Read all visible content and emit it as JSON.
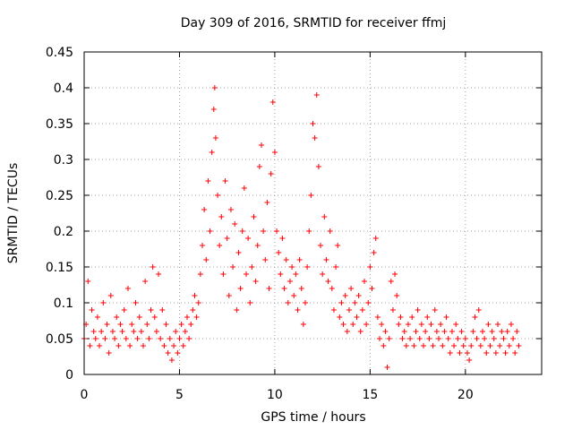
{
  "chart_data": {
    "type": "scatter",
    "title": "Day 309 of 2016, SRMTID for receiver ffmj",
    "xlabel": "GPS time / hours",
    "ylabel": "SRMTID / TECUs",
    "xlim": [
      0,
      24
    ],
    "ylim": [
      0,
      0.45
    ],
    "grid": true,
    "marker": "+",
    "marker_color": "#ff0000",
    "x_ticks": [
      0,
      5,
      10,
      15,
      20
    ],
    "x_tick_labels": [
      "0",
      "5",
      "10",
      "15",
      "20"
    ],
    "y_ticks": [
      0,
      0.05,
      0.1,
      0.15,
      0.2,
      0.25,
      0.3,
      0.35,
      0.4,
      0.45
    ],
    "y_tick_labels": [
      "0",
      "0.05",
      "0.1",
      "0.15",
      "0.2",
      "0.25",
      "0.3",
      "0.35",
      "0.4",
      "0.45"
    ],
    "series": [
      {
        "name": "SRMTID",
        "points": [
          [
            0.0,
            0.05
          ],
          [
            0.1,
            0.07
          ],
          [
            0.2,
            0.13
          ],
          [
            0.3,
            0.04
          ],
          [
            0.4,
            0.09
          ],
          [
            0.5,
            0.06
          ],
          [
            0.6,
            0.05
          ],
          [
            0.7,
            0.08
          ],
          [
            0.8,
            0.04
          ],
          [
            0.9,
            0.06
          ],
          [
            1.0,
            0.1
          ],
          [
            1.1,
            0.05
          ],
          [
            1.2,
            0.07
          ],
          [
            1.3,
            0.03
          ],
          [
            1.4,
            0.11
          ],
          [
            1.5,
            0.06
          ],
          [
            1.6,
            0.05
          ],
          [
            1.7,
            0.08
          ],
          [
            1.8,
            0.04
          ],
          [
            1.9,
            0.07
          ],
          [
            2.0,
            0.06
          ],
          [
            2.1,
            0.09
          ],
          [
            2.2,
            0.05
          ],
          [
            2.3,
            0.12
          ],
          [
            2.4,
            0.04
          ],
          [
            2.5,
            0.07
          ],
          [
            2.6,
            0.06
          ],
          [
            2.7,
            0.1
          ],
          [
            2.8,
            0.05
          ],
          [
            2.9,
            0.08
          ],
          [
            3.0,
            0.06
          ],
          [
            3.1,
            0.04
          ],
          [
            3.2,
            0.13
          ],
          [
            3.3,
            0.07
          ],
          [
            3.4,
            0.05
          ],
          [
            3.5,
            0.09
          ],
          [
            3.6,
            0.15
          ],
          [
            3.7,
            0.08
          ],
          [
            3.8,
            0.06
          ],
          [
            3.9,
            0.14
          ],
          [
            4.0,
            0.05
          ],
          [
            4.1,
            0.09
          ],
          [
            4.2,
            0.04
          ],
          [
            4.3,
            0.07
          ],
          [
            4.4,
            0.03
          ],
          [
            4.5,
            0.05
          ],
          [
            4.6,
            0.02
          ],
          [
            4.7,
            0.04
          ],
          [
            4.8,
            0.06
          ],
          [
            4.9,
            0.03
          ],
          [
            5.0,
            0.05
          ],
          [
            5.1,
            0.07
          ],
          [
            5.2,
            0.04
          ],
          [
            5.3,
            0.06
          ],
          [
            5.4,
            0.08
          ],
          [
            5.5,
            0.05
          ],
          [
            5.6,
            0.07
          ],
          [
            5.7,
            0.09
          ],
          [
            5.8,
            0.11
          ],
          [
            5.9,
            0.08
          ],
          [
            6.0,
            0.1
          ],
          [
            6.1,
            0.14
          ],
          [
            6.2,
            0.18
          ],
          [
            6.3,
            0.23
          ],
          [
            6.4,
            0.16
          ],
          [
            6.5,
            0.27
          ],
          [
            6.6,
            0.2
          ],
          [
            6.7,
            0.31
          ],
          [
            6.8,
            0.37
          ],
          [
            6.85,
            0.4
          ],
          [
            6.9,
            0.33
          ],
          [
            7.0,
            0.25
          ],
          [
            7.1,
            0.18
          ],
          [
            7.2,
            0.22
          ],
          [
            7.3,
            0.14
          ],
          [
            7.4,
            0.27
          ],
          [
            7.5,
            0.19
          ],
          [
            7.6,
            0.11
          ],
          [
            7.7,
            0.23
          ],
          [
            7.8,
            0.15
          ],
          [
            7.9,
            0.21
          ],
          [
            8.0,
            0.09
          ],
          [
            8.1,
            0.17
          ],
          [
            8.2,
            0.12
          ],
          [
            8.3,
            0.2
          ],
          [
            8.4,
            0.26
          ],
          [
            8.5,
            0.14
          ],
          [
            8.6,
            0.19
          ],
          [
            8.7,
            0.1
          ],
          [
            8.8,
            0.15
          ],
          [
            8.9,
            0.22
          ],
          [
            9.0,
            0.13
          ],
          [
            9.1,
            0.18
          ],
          [
            9.2,
            0.29
          ],
          [
            9.3,
            0.32
          ],
          [
            9.4,
            0.2
          ],
          [
            9.5,
            0.16
          ],
          [
            9.6,
            0.24
          ],
          [
            9.7,
            0.12
          ],
          [
            9.8,
            0.28
          ],
          [
            9.9,
            0.38
          ],
          [
            10.0,
            0.31
          ],
          [
            10.1,
            0.2
          ],
          [
            10.2,
            0.17
          ],
          [
            10.3,
            0.14
          ],
          [
            10.4,
            0.19
          ],
          [
            10.5,
            0.12
          ],
          [
            10.6,
            0.16
          ],
          [
            10.7,
            0.1
          ],
          [
            10.8,
            0.13
          ],
          [
            10.9,
            0.15
          ],
          [
            11.0,
            0.11
          ],
          [
            11.1,
            0.14
          ],
          [
            11.2,
            0.09
          ],
          [
            11.3,
            0.16
          ],
          [
            11.4,
            0.12
          ],
          [
            11.5,
            0.07
          ],
          [
            11.6,
            0.1
          ],
          [
            11.7,
            0.15
          ],
          [
            11.8,
            0.2
          ],
          [
            11.9,
            0.25
          ],
          [
            12.0,
            0.35
          ],
          [
            12.1,
            0.33
          ],
          [
            12.2,
            0.39
          ],
          [
            12.3,
            0.29
          ],
          [
            12.4,
            0.18
          ],
          [
            12.5,
            0.14
          ],
          [
            12.6,
            0.22
          ],
          [
            12.7,
            0.16
          ],
          [
            12.8,
            0.13
          ],
          [
            12.9,
            0.2
          ],
          [
            13.0,
            0.12
          ],
          [
            13.1,
            0.09
          ],
          [
            13.2,
            0.15
          ],
          [
            13.3,
            0.18
          ],
          [
            13.4,
            0.08
          ],
          [
            13.5,
            0.1
          ],
          [
            13.6,
            0.07
          ],
          [
            13.7,
            0.11
          ],
          [
            13.8,
            0.06
          ],
          [
            13.9,
            0.09
          ],
          [
            14.0,
            0.12
          ],
          [
            14.1,
            0.07
          ],
          [
            14.2,
            0.1
          ],
          [
            14.3,
            0.08
          ],
          [
            14.4,
            0.11
          ],
          [
            14.5,
            0.06
          ],
          [
            14.6,
            0.09
          ],
          [
            14.7,
            0.13
          ],
          [
            14.8,
            0.07
          ],
          [
            14.9,
            0.1
          ],
          [
            15.0,
            0.15
          ],
          [
            15.1,
            0.12
          ],
          [
            15.2,
            0.17
          ],
          [
            15.3,
            0.19
          ],
          [
            15.4,
            0.08
          ],
          [
            15.5,
            0.05
          ],
          [
            15.6,
            0.07
          ],
          [
            15.7,
            0.04
          ],
          [
            15.8,
            0.06
          ],
          [
            15.9,
            0.01
          ],
          [
            16.0,
            0.05
          ],
          [
            16.1,
            0.13
          ],
          [
            16.2,
            0.09
          ],
          [
            16.3,
            0.14
          ],
          [
            16.4,
            0.11
          ],
          [
            16.5,
            0.07
          ],
          [
            16.6,
            0.08
          ],
          [
            16.7,
            0.05
          ],
          [
            16.8,
            0.06
          ],
          [
            16.9,
            0.04
          ],
          [
            17.0,
            0.07
          ],
          [
            17.1,
            0.05
          ],
          [
            17.2,
            0.08
          ],
          [
            17.3,
            0.04
          ],
          [
            17.4,
            0.06
          ],
          [
            17.5,
            0.09
          ],
          [
            17.6,
            0.05
          ],
          [
            17.7,
            0.07
          ],
          [
            17.8,
            0.04
          ],
          [
            17.9,
            0.06
          ],
          [
            18.0,
            0.08
          ],
          [
            18.1,
            0.05
          ],
          [
            18.2,
            0.07
          ],
          [
            18.3,
            0.04
          ],
          [
            18.4,
            0.09
          ],
          [
            18.5,
            0.06
          ],
          [
            18.6,
            0.05
          ],
          [
            18.7,
            0.07
          ],
          [
            18.8,
            0.04
          ],
          [
            18.9,
            0.06
          ],
          [
            19.0,
            0.08
          ],
          [
            19.1,
            0.05
          ],
          [
            19.2,
            0.03
          ],
          [
            19.3,
            0.06
          ],
          [
            19.4,
            0.04
          ],
          [
            19.5,
            0.07
          ],
          [
            19.6,
            0.05
          ],
          [
            19.7,
            0.03
          ],
          [
            19.8,
            0.06
          ],
          [
            19.9,
            0.04
          ],
          [
            20.0,
            0.05
          ],
          [
            20.1,
            0.03
          ],
          [
            20.2,
            0.02
          ],
          [
            20.3,
            0.04
          ],
          [
            20.4,
            0.06
          ],
          [
            20.5,
            0.08
          ],
          [
            20.6,
            0.05
          ],
          [
            20.7,
            0.09
          ],
          [
            20.8,
            0.04
          ],
          [
            20.9,
            0.06
          ],
          [
            21.0,
            0.05
          ],
          [
            21.1,
            0.03
          ],
          [
            21.2,
            0.07
          ],
          [
            21.3,
            0.04
          ],
          [
            21.4,
            0.06
          ],
          [
            21.5,
            0.05
          ],
          [
            21.6,
            0.03
          ],
          [
            21.7,
            0.07
          ],
          [
            21.8,
            0.04
          ],
          [
            21.9,
            0.06
          ],
          [
            22.0,
            0.05
          ],
          [
            22.1,
            0.03
          ],
          [
            22.2,
            0.06
          ],
          [
            22.3,
            0.04
          ],
          [
            22.4,
            0.07
          ],
          [
            22.5,
            0.05
          ],
          [
            22.6,
            0.03
          ],
          [
            22.7,
            0.06
          ],
          [
            22.8,
            0.04
          ]
        ]
      }
    ]
  }
}
